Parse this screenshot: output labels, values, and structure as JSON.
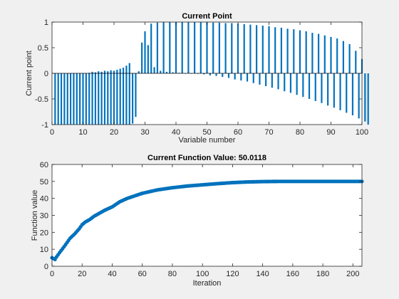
{
  "figure": {
    "background": "#f0f0f0",
    "axes_background": "#ffffff",
    "series_color": "#0072bd"
  },
  "chart_data": [
    {
      "type": "bar",
      "title": "Current Point",
      "xlabel": "Variable number",
      "ylabel": "Current point",
      "xlim": [
        0,
        100
      ],
      "ylim": [
        -1,
        1
      ],
      "xticks": [
        0,
        10,
        20,
        30,
        40,
        50,
        60,
        70,
        80,
        90,
        100
      ],
      "xtick_labels": [
        "0",
        "10",
        "20",
        "30",
        "40",
        "50",
        "60",
        "70",
        "80",
        "90",
        "100"
      ],
      "yticks": [
        -1,
        -0.5,
        0,
        0.5,
        1
      ],
      "ytick_labels": [
        "-1",
        "-0.5",
        "0",
        "0.5",
        "1"
      ],
      "grid": false,
      "values": [
        -1,
        -1,
        -1,
        -1,
        -1,
        -1,
        -1,
        -1,
        -1,
        -1,
        -1,
        -1,
        -1,
        -1,
        -1,
        -1,
        -1,
        -1,
        -1,
        -1,
        -1,
        -1,
        -1,
        -1,
        -1,
        -0.98,
        -0.85,
        0.04,
        0.6,
        0.82,
        0.55,
        0.97,
        0.12,
        0.99,
        0.05,
        1,
        0.03,
        1,
        0.02,
        1,
        0.01,
        1,
        0.0,
        1,
        0.0,
        1,
        -0.01,
        1,
        -0.02,
        1,
        -0.04,
        0.99,
        -0.05,
        0.99,
        -0.07,
        0.98,
        -0.09,
        0.98,
        -0.12,
        0.97,
        -0.14,
        0.96,
        -0.16,
        0.95,
        -0.19,
        0.94,
        -0.22,
        0.93,
        -0.25,
        0.92,
        -0.28,
        0.9,
        -0.31,
        0.89,
        -0.35,
        0.87,
        -0.38,
        0.86,
        -0.42,
        0.84,
        -0.46,
        0.82,
        -0.5,
        0.79,
        -0.54,
        0.77,
        -0.58,
        0.74,
        -0.63,
        0.71,
        -0.67,
        0.68,
        -0.72,
        0.63,
        -0.77,
        0.57,
        -0.82,
        0.44,
        -0.88,
        0.28,
        -0.94,
        -1
      ],
      "small_positive_overlay": [
        0,
        0,
        0,
        0,
        0,
        0,
        0,
        0,
        0,
        0,
        0,
        0.01,
        0.03,
        0.02,
        0.04,
        0.03,
        0.05,
        0.04,
        0.06,
        0.05,
        0.07,
        0.09,
        0.11,
        0.15,
        0.2
      ]
    },
    {
      "type": "line",
      "title": "Current Function Value: 50.0118",
      "xlabel": "Iteration",
      "ylabel": "Function value",
      "xlim": [
        0,
        206
      ],
      "ylim": [
        0,
        60
      ],
      "xticks": [
        0,
        20,
        40,
        60,
        80,
        100,
        120,
        140,
        160,
        180,
        200
      ],
      "xtick_labels": [
        "0",
        "20",
        "40",
        "60",
        "80",
        "100",
        "120",
        "140",
        "160",
        "180",
        "200"
      ],
      "yticks": [
        0,
        10,
        20,
        30,
        40,
        50,
        60
      ],
      "ytick_labels": [
        "0",
        "10",
        "20",
        "30",
        "40",
        "50",
        "60"
      ],
      "grid": false,
      "marker": "filled-circle",
      "curve": {
        "x": [
          0,
          1,
          2,
          3,
          5,
          8,
          10,
          12,
          15,
          18,
          20,
          22,
          25,
          28,
          30,
          35,
          40,
          45,
          50,
          60,
          70,
          80,
          90,
          100,
          110,
          120,
          130,
          140,
          150,
          160,
          180,
          206
        ],
        "y": [
          5.0,
          4.5,
          4.0,
          5.5,
          8.0,
          11.5,
          14.0,
          16.5,
          19.0,
          22.0,
          24.5,
          26.0,
          27.5,
          29.5,
          30.5,
          33.0,
          35.0,
          38.0,
          40.0,
          43.0,
          45.0,
          46.3,
          47.3,
          48.0,
          48.7,
          49.3,
          49.7,
          49.9,
          50.0,
          50.0,
          50.0,
          50.0
        ]
      }
    }
  ]
}
